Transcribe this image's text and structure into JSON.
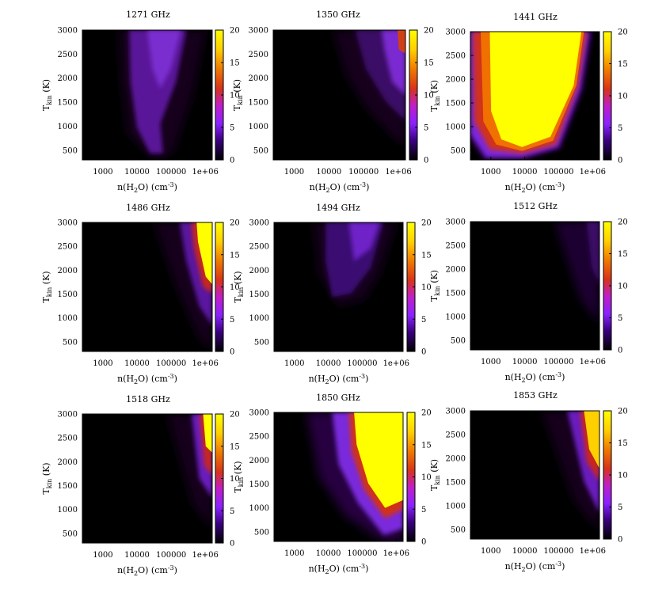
{
  "figure": {
    "xlabel_parts": [
      "n(H",
      "2",
      "O) (cm",
      "-3",
      ")"
    ],
    "ylabel_parts": [
      "T",
      "kin",
      " (K)"
    ]
  },
  "chart_data": [
    {
      "type": "heatmap",
      "title": "1271 GHz",
      "x_scale": "log",
      "xlim": [
        250,
        1600000
      ],
      "ylim": [
        300,
        3000
      ],
      "xticks": [
        "1000",
        "10000",
        "100000",
        "1e+06"
      ],
      "yticks": [
        "500",
        "1000",
        "1500",
        "2000",
        "2500",
        "3000"
      ],
      "colorbar": {
        "range": [
          0,
          20
        ],
        "ticks": [
          "0",
          "5",
          "10",
          "15",
          "20"
        ]
      },
      "peak_value": 4,
      "emission_region": {
        "n_min": 1500,
        "n_max": 600000,
        "T_min": 400
      }
    },
    {
      "type": "heatmap",
      "title": "1350 GHz",
      "x_scale": "log",
      "xlim": [
        250,
        1600000
      ],
      "ylim": [
        300,
        3000
      ],
      "xticks": [
        "1000",
        "10000",
        "100000",
        "1e+06"
      ],
      "yticks": [
        "500",
        "1000",
        "1500",
        "2000",
        "2500",
        "3000"
      ],
      "colorbar": {
        "range": [
          0,
          20
        ],
        "ticks": [
          "0",
          "5",
          "10",
          "15",
          "20"
        ]
      },
      "peak_value": 15,
      "emission_region": {
        "n_min": 20000,
        "n_max": 1600000,
        "T_min": 900
      }
    },
    {
      "type": "heatmap",
      "title": "1441 GHz",
      "x_scale": "log",
      "xlim": [
        250,
        1600000
      ],
      "ylim": [
        300,
        3000
      ],
      "xticks": [
        "1000",
        "10000",
        "100000",
        "1e+06"
      ],
      "yticks": [
        "500",
        "1000",
        "1500",
        "2000",
        "2500",
        "3000"
      ],
      "colorbar": {
        "range": [
          0,
          20
        ],
        "ticks": [
          "0",
          "5",
          "10",
          "15",
          "20"
        ]
      },
      "peak_value": 20,
      "emission_region": {
        "n_min": 250,
        "n_max": 700000,
        "T_min": 330
      }
    },
    {
      "type": "heatmap",
      "title": "1486 GHz",
      "x_scale": "log",
      "xlim": [
        250,
        1600000
      ],
      "ylim": [
        300,
        3000
      ],
      "xticks": [
        "1000",
        "10000",
        "100000",
        "1e+06"
      ],
      "yticks": [
        "500",
        "1000",
        "1500",
        "2000",
        "2500",
        "3000"
      ],
      "colorbar": {
        "range": [
          0,
          20
        ],
        "ticks": [
          "0",
          "5",
          "10",
          "15",
          "20"
        ]
      },
      "peak_value": 20,
      "emission_region": {
        "n_min": 30000,
        "n_max": 1600000,
        "T_min": 800
      }
    },
    {
      "type": "heatmap",
      "title": "1494 GHz",
      "x_scale": "log",
      "xlim": [
        250,
        1600000
      ],
      "ylim": [
        300,
        3000
      ],
      "xticks": [
        "1000",
        "10000",
        "100000",
        "1e+06"
      ],
      "yticks": [
        "500",
        "1000",
        "1500",
        "2000",
        "2500",
        "3000"
      ],
      "colorbar": {
        "range": [
          0,
          20
        ],
        "ticks": [
          "0",
          "5",
          "10",
          "15",
          "20"
        ]
      },
      "peak_value": 5,
      "emission_region": {
        "n_min": 5000,
        "n_max": 500000,
        "T_min": 1400
      }
    },
    {
      "type": "heatmap",
      "title": "1512 GHz",
      "x_scale": "log",
      "xlim": [
        250,
        1600000
      ],
      "ylim": [
        300,
        3000
      ],
      "xticks": [
        "1000",
        "10000",
        "100000",
        "1e+06"
      ],
      "yticks": [
        "500",
        "1000",
        "1500",
        "2000",
        "2500",
        "3000"
      ],
      "colorbar": {
        "range": [
          0,
          20
        ],
        "ticks": [
          "0",
          "5",
          "10",
          "15",
          "20"
        ]
      },
      "peak_value": 2,
      "emission_region": {
        "n_min": 60000,
        "n_max": 1600000,
        "T_min": 1000
      }
    },
    {
      "type": "heatmap",
      "title": "1518 GHz",
      "x_scale": "log",
      "xlim": [
        250,
        1600000
      ],
      "ylim": [
        300,
        3000
      ],
      "xticks": [
        "1000",
        "10000",
        "100000",
        "1e+06"
      ],
      "yticks": [
        "500",
        "1000",
        "1500",
        "2000",
        "2500",
        "3000"
      ],
      "colorbar": {
        "range": [
          0,
          20
        ],
        "ticks": [
          "0",
          "5",
          "10",
          "15",
          "20"
        ]
      },
      "peak_value": 20,
      "emission_region": {
        "n_min": 100000,
        "n_max": 1600000,
        "T_min": 1200
      }
    },
    {
      "type": "heatmap",
      "title": "1850 GHz",
      "x_scale": "log",
      "xlim": [
        250,
        1600000
      ],
      "ylim": [
        300,
        3000
      ],
      "xticks": [
        "1000",
        "10000",
        "100000",
        "1e+06"
      ],
      "yticks": [
        "500",
        "1000",
        "1500",
        "2000",
        "2500",
        "3000"
      ],
      "colorbar": {
        "range": [
          0,
          20
        ],
        "ticks": [
          "0",
          "5",
          "10",
          "15",
          "20"
        ]
      },
      "peak_value": 20,
      "emission_region": {
        "n_min": 2000,
        "n_max": 1600000,
        "T_min": 650
      }
    },
    {
      "type": "heatmap",
      "title": "1853 GHz",
      "x_scale": "log",
      "xlim": [
        250,
        1600000
      ],
      "ylim": [
        300,
        3000
      ],
      "xticks": [
        "1000",
        "10000",
        "100000",
        "1e+06"
      ],
      "yticks": [
        "500",
        "1000",
        "1500",
        "2000",
        "2500",
        "3000"
      ],
      "colorbar": {
        "range": [
          0,
          20
        ],
        "ticks": [
          "0",
          "5",
          "10",
          "15",
          "20"
        ]
      },
      "peak_value": 20,
      "emission_region": {
        "n_min": 20000,
        "n_max": 1600000,
        "T_min": 900
      }
    }
  ]
}
